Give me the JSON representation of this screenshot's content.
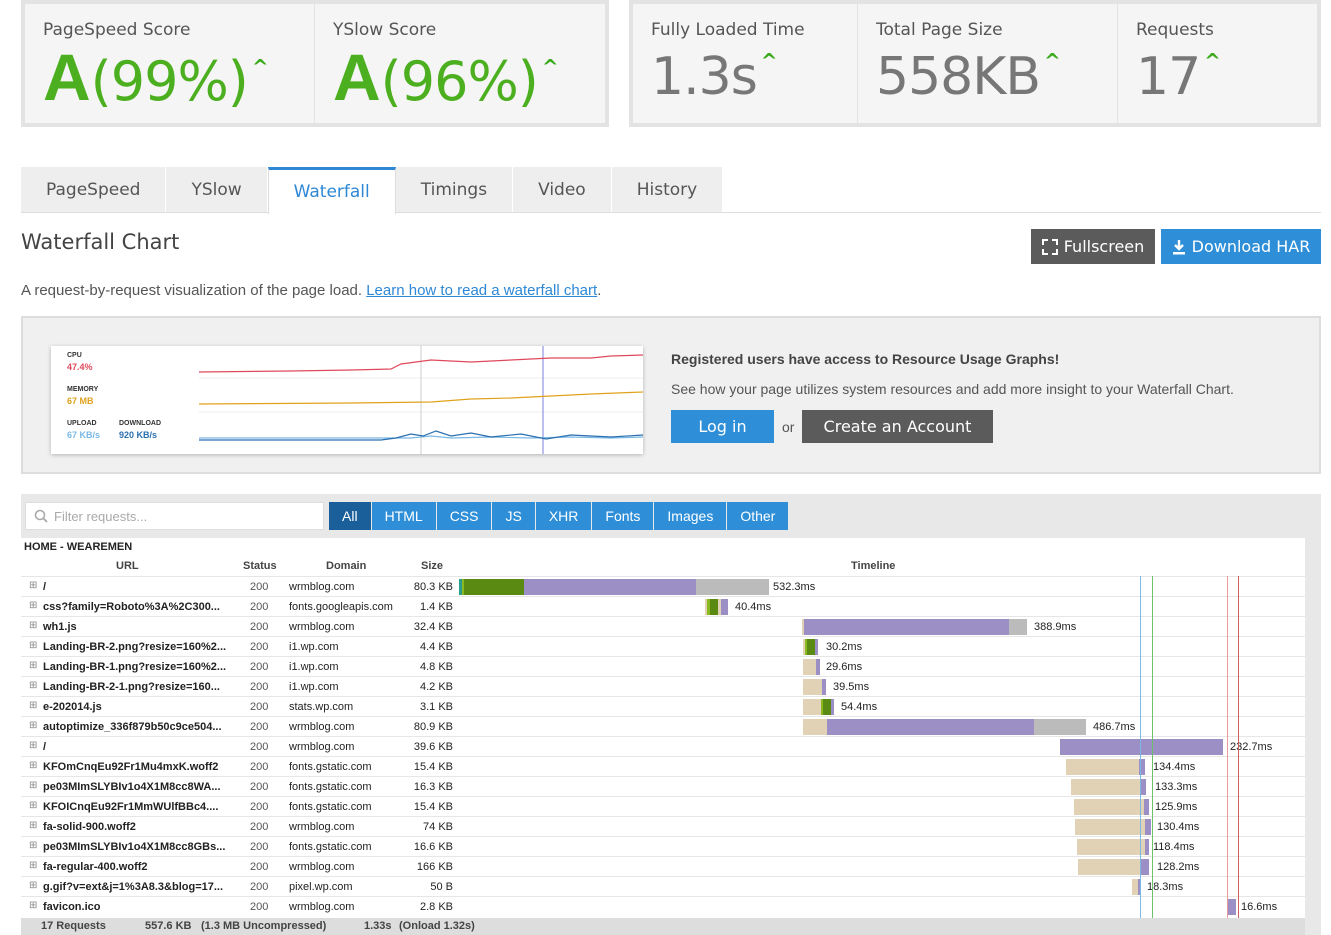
{
  "scores": {
    "pagespeed": {
      "label": "PageSpeed Score",
      "grade": "A",
      "value": "(99%)"
    },
    "yslow": {
      "label": "YSlow Score",
      "grade": "A",
      "value": "(96%)"
    }
  },
  "metrics": {
    "loaded": {
      "label": "Fully Loaded Time",
      "value": "1.3s"
    },
    "size": {
      "label": "Total Page Size",
      "value": "558KB"
    },
    "requests": {
      "label": "Requests",
      "value": "17"
    }
  },
  "tabs": [
    "PageSpeed",
    "YSlow",
    "Waterfall",
    "Timings",
    "Video",
    "History"
  ],
  "active_tab": "Waterfall",
  "section": {
    "title": "Waterfall Chart",
    "fullscreen": "Fullscreen",
    "download": "Download HAR",
    "desc": "A request-by-request visualization of the page load.",
    "link": "Learn how to read a waterfall chart",
    "period": "."
  },
  "resource": {
    "cpu_label": "CPU",
    "cpu_val": "47.4%",
    "mem_label": "MEMORY",
    "mem_val": "67 MB",
    "up_label": "UPLOAD",
    "up_val": "67 KB/s",
    "down_label": "DOWNLOAD",
    "down_val": "920 KB/s",
    "headline": "Registered users have access to Resource Usage Graphs!",
    "sub": "See how your page utilizes system resources and add more insight to your Waterfall Chart.",
    "login": "Log in",
    "or": "or",
    "create": "Create an Account",
    "colors": {
      "cpu": "#e0495b",
      "memory": "#e0a21c",
      "upload": "#7ab8e6",
      "download": "#2a6fae"
    }
  },
  "filter": {
    "placeholder": "Filter requests...",
    "types": [
      "All",
      "HTML",
      "CSS",
      "JS",
      "XHR",
      "Fonts",
      "Images",
      "Other"
    ]
  },
  "waterfall": {
    "site": "HOME - WEAREMEN",
    "headers": {
      "url": "URL",
      "status": "Status",
      "domain": "Domain",
      "size": "Size",
      "timeline": "Timeline"
    },
    "rows": [
      {
        "url": "/",
        "status": "200",
        "domain": "wrmblog.com",
        "size": "80.3 KB",
        "time": "532.3ms"
      },
      {
        "url": "css?family=Roboto%3A%2C300...",
        "status": "200",
        "domain": "fonts.googleapis.com",
        "size": "1.4 KB",
        "time": "40.4ms"
      },
      {
        "url": "wh1.js",
        "status": "200",
        "domain": "wrmblog.com",
        "size": "32.4 KB",
        "time": "388.9ms"
      },
      {
        "url": "Landing-BR-2.png?resize=160%2...",
        "status": "200",
        "domain": "i1.wp.com",
        "size": "4.4 KB",
        "time": "30.2ms"
      },
      {
        "url": "Landing-BR-1.png?resize=160%2...",
        "status": "200",
        "domain": "i1.wp.com",
        "size": "4.8 KB",
        "time": "29.6ms"
      },
      {
        "url": "Landing-BR-2-1.png?resize=160...",
        "status": "200",
        "domain": "i1.wp.com",
        "size": "4.2 KB",
        "time": "39.5ms"
      },
      {
        "url": "e-202014.js",
        "status": "200",
        "domain": "stats.wp.com",
        "size": "3.1 KB",
        "time": "54.4ms"
      },
      {
        "url": "autoptimize_336f879b50c9ce504...",
        "status": "200",
        "domain": "wrmblog.com",
        "size": "80.9 KB",
        "time": "486.7ms"
      },
      {
        "url": "/",
        "status": "200",
        "domain": "wrmblog.com",
        "size": "39.6 KB",
        "time": "232.7ms"
      },
      {
        "url": "KFOmCnqEu92Fr1Mu4mxK.woff2",
        "status": "200",
        "domain": "fonts.gstatic.com",
        "size": "15.4 KB",
        "time": "134.4ms"
      },
      {
        "url": "pe03MImSLYBIv1o4X1M8cc8WA...",
        "status": "200",
        "domain": "fonts.gstatic.com",
        "size": "16.3 KB",
        "time": "133.3ms"
      },
      {
        "url": "KFOICnqEu92Fr1MmWUlfBBc4....",
        "status": "200",
        "domain": "fonts.gstatic.com",
        "size": "15.4 KB",
        "time": "125.9ms"
      },
      {
        "url": "fa-solid-900.woff2",
        "status": "200",
        "domain": "wrmblog.com",
        "size": "74 KB",
        "time": "130.4ms"
      },
      {
        "url": "pe03MImSLYBIv1o4X1M8cc8GBs...",
        "status": "200",
        "domain": "fonts.gstatic.com",
        "size": "16.6 KB",
        "time": "118.4ms"
      },
      {
        "url": "fa-regular-400.woff2",
        "status": "200",
        "domain": "wrmblog.com",
        "size": "166 KB",
        "time": "128.2ms"
      },
      {
        "url": "g.gif?v=ext&j=1%3A8.3&blog=17...",
        "status": "200",
        "domain": "pixel.wp.com",
        "size": "50 B",
        "time": "18.3ms"
      },
      {
        "url": "favicon.ico",
        "status": "200",
        "domain": "wrmblog.com",
        "size": "2.8 KB",
        "time": "16.6ms"
      }
    ],
    "footer": {
      "requests": "17 Requests",
      "size": "557.6 KB",
      "uncompressed": "(1.3 MB Uncompressed)",
      "time": "1.33s",
      "onload": "(Onload 1.32s)"
    },
    "colors": {
      "blocking": "#e1d2b5",
      "dns": "#2a9d8f",
      "connect": "#8ab81f",
      "ssl": "#5a8a12",
      "wait": "#9c8fc6",
      "receive": "#bbbbbb"
    }
  }
}
